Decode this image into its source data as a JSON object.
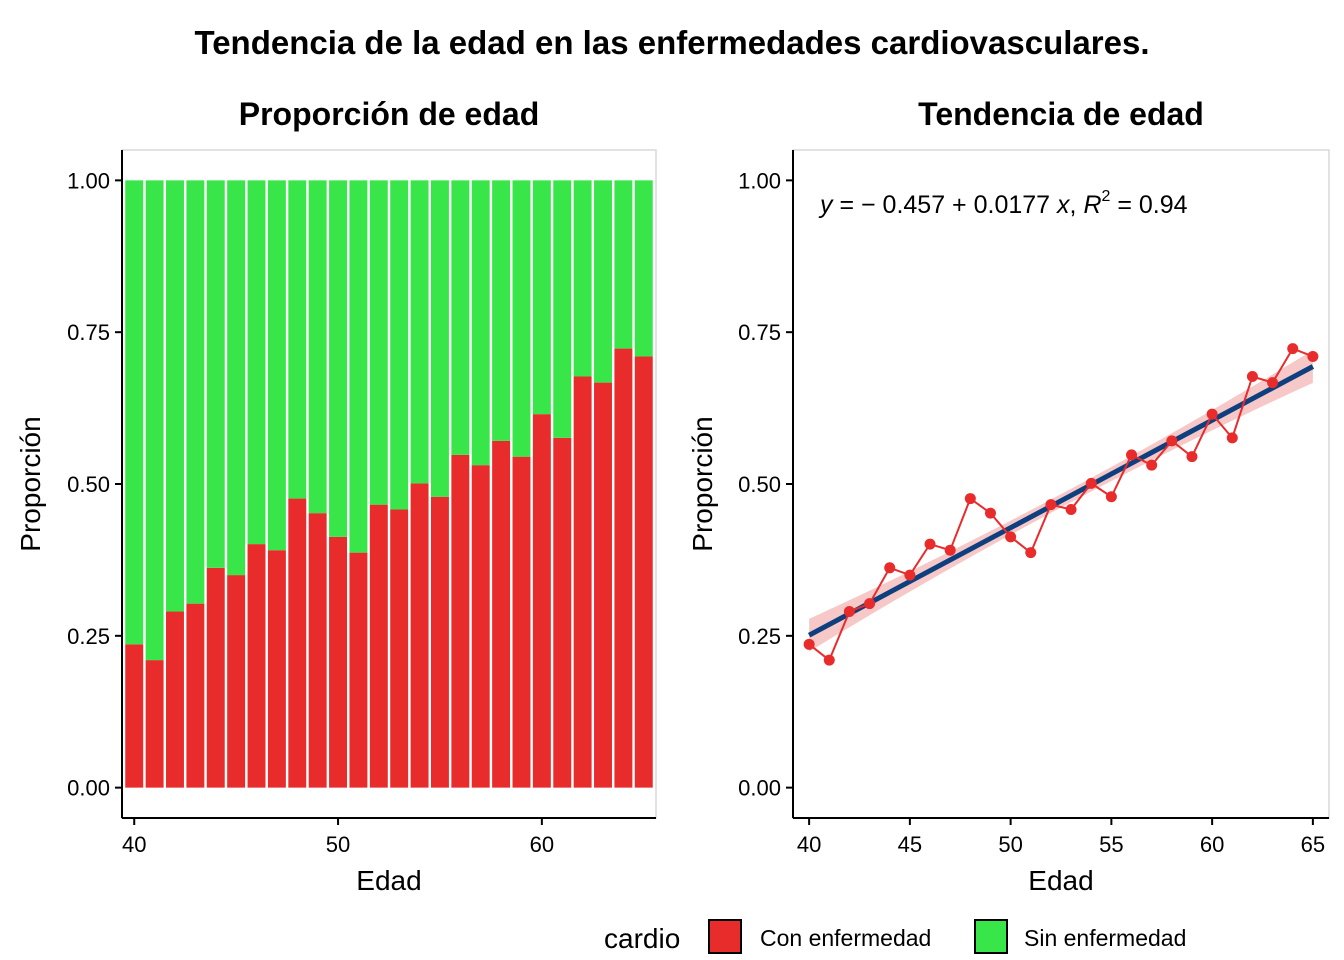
{
  "chart_data": [
    {
      "type": "bar",
      "title": "Proporción de edad",
      "xlabel": "Edad",
      "ylabel": "Proporción",
      "stacked": true,
      "xlim": [
        39.4,
        65.6
      ],
      "ylim": [
        -0.05,
        1.05
      ],
      "x_ticks": [
        40,
        50,
        60
      ],
      "y_ticks": [
        0.0,
        0.25,
        0.5,
        0.75,
        1.0
      ],
      "y_tick_labels": [
        "0.00",
        "0.25",
        "0.50",
        "0.75",
        "1.00"
      ],
      "categories": [
        40,
        41,
        42,
        43,
        44,
        45,
        46,
        47,
        48,
        49,
        50,
        51,
        52,
        53,
        54,
        55,
        56,
        57,
        58,
        59,
        60,
        61,
        62,
        63,
        64,
        65
      ],
      "series": [
        {
          "name": "Con enfermedad",
          "color": "#E82C2C",
          "values": [
            0.236,
            0.21,
            0.29,
            0.303,
            0.362,
            0.35,
            0.401,
            0.391,
            0.476,
            0.452,
            0.413,
            0.387,
            0.466,
            0.458,
            0.501,
            0.479,
            0.548,
            0.531,
            0.571,
            0.545,
            0.615,
            0.576,
            0.677,
            0.667,
            0.723,
            0.71
          ]
        },
        {
          "name": "Sin enfermedad",
          "color": "#38E64A",
          "values": [
            0.764,
            0.79,
            0.71,
            0.697,
            0.638,
            0.65,
            0.599,
            0.609,
            0.524,
            0.548,
            0.587,
            0.613,
            0.534,
            0.542,
            0.499,
            0.521,
            0.452,
            0.469,
            0.429,
            0.455,
            0.385,
            0.424,
            0.323,
            0.333,
            0.277,
            0.29
          ]
        }
      ],
      "grid": false
    },
    {
      "type": "line",
      "title": "Tendencia de edad",
      "xlabel": "Edad",
      "ylabel": "Proporción",
      "xlim": [
        39.2,
        65.8
      ],
      "ylim": [
        -0.05,
        1.05
      ],
      "x_ticks": [
        40,
        45,
        50,
        55,
        60,
        65
      ],
      "y_ticks": [
        0.0,
        0.25,
        0.5,
        0.75,
        1.0
      ],
      "y_tick_labels": [
        "0.00",
        "0.25",
        "0.50",
        "0.75",
        "1.00"
      ],
      "x": [
        40,
        41,
        42,
        43,
        44,
        45,
        46,
        47,
        48,
        49,
        50,
        51,
        52,
        53,
        54,
        55,
        56,
        57,
        58,
        59,
        60,
        61,
        62,
        63,
        64,
        65
      ],
      "series": [
        {
          "name": "Con enfermedad",
          "color": "#E82C2C",
          "values": [
            0.236,
            0.21,
            0.29,
            0.303,
            0.362,
            0.35,
            0.401,
            0.391,
            0.476,
            0.452,
            0.413,
            0.387,
            0.466,
            0.458,
            0.501,
            0.479,
            0.548,
            0.531,
            0.571,
            0.545,
            0.615,
            0.576,
            0.677,
            0.667,
            0.723,
            0.71
          ]
        }
      ],
      "fit": {
        "intercept": -0.457,
        "slope": 0.0177,
        "r2": 0.94,
        "color": "#0E3F7E",
        "ribbon_color": "#F2A3A3",
        "ribbon_halfwidth_ends": 0.027,
        "ribbon_halfwidth_center": 0.011,
        "equation_parts": {
          "y_var": "y",
          "eq_sign": " = ",
          "neg_sign": "− ",
          "intercept": "0.457",
          "plus": " + ",
          "slope": "0.0177",
          "x_var": " x",
          "sep": ", ",
          "r_var": "R",
          "r_exp": "2",
          "r_eq": " = ",
          "r_value": "0.94"
        }
      },
      "grid": false
    }
  ],
  "figure": {
    "main_title": "Tendencia de la edad en las enfermedades cardiovasculares.",
    "legend": {
      "title": "cardio",
      "position": "bottom",
      "items": [
        {
          "label": "Con enfermedad",
          "color": "#E82C2C"
        },
        {
          "label": "Sin enfermedad",
          "color": "#38E64A"
        }
      ]
    }
  }
}
